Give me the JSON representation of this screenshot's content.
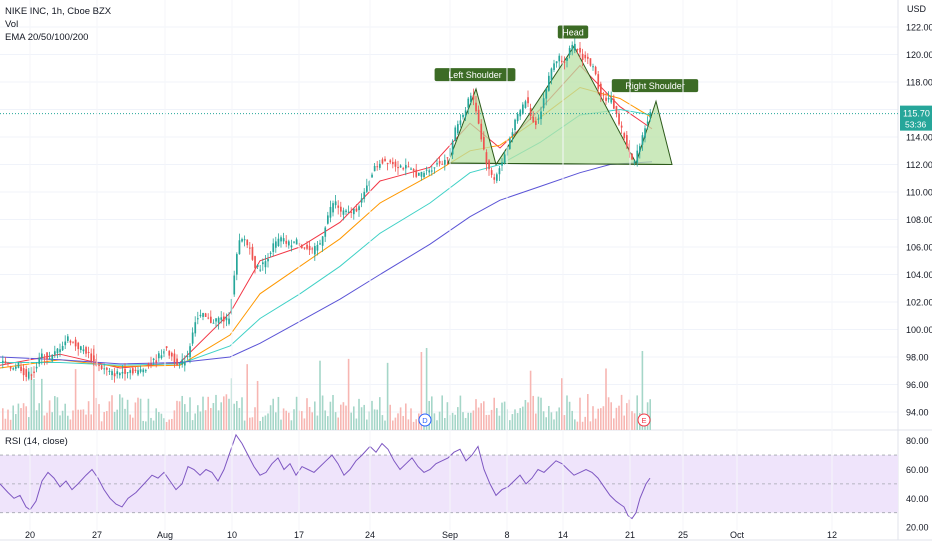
{
  "header": {
    "symbol_line": "NIKE INC, 1h, Cboe BZX",
    "vol_label": "Vol",
    "ema_label": "EMA 20/50/100/200"
  },
  "chart_data": {
    "type": "candlestick",
    "currency": "USD",
    "price_axis": {
      "ticks": [
        94,
        96,
        98,
        100,
        102,
        104,
        106,
        108,
        110,
        112,
        114,
        116,
        118,
        120,
        122
      ],
      "range": [
        93,
        122.5
      ]
    },
    "x_ticks": [
      "20",
      "27",
      "Aug",
      "10",
      "17",
      "24",
      "Sep",
      "8",
      "14",
      "21",
      "25",
      "Oct",
      "12"
    ],
    "last_price": {
      "label": "115.70",
      "value": 115.7,
      "countdown": "53:36",
      "color": "#26a69a"
    },
    "price_path": [
      [
        0,
        97.8
      ],
      [
        12,
        97.2
      ],
      [
        20,
        97.5
      ],
      [
        28,
        96.6
      ],
      [
        36,
        97.0
      ],
      [
        44,
        98.2
      ],
      [
        52,
        97.8
      ],
      [
        60,
        98.6
      ],
      [
        70,
        99.4
      ],
      [
        78,
        98.8
      ],
      [
        88,
        98.4
      ],
      [
        96,
        97.6
      ],
      [
        104,
        97.2
      ],
      [
        112,
        96.8
      ],
      [
        120,
        96.8
      ],
      [
        130,
        97.1
      ],
      [
        140,
        96.9
      ],
      [
        150,
        97.4
      ],
      [
        158,
        97.8
      ],
      [
        166,
        98.6
      ],
      [
        174,
        98.0
      ],
      [
        182,
        97.4
      ],
      [
        190,
        98.2
      ],
      [
        196,
        100.6
      ],
      [
        204,
        101.0
      ],
      [
        212,
        100.6
      ],
      [
        222,
        100.8
      ],
      [
        230,
        100.6
      ],
      [
        236,
        103.8
      ],
      [
        240,
        106.2
      ],
      [
        246,
        106.6
      ],
      [
        252,
        105.8
      ],
      [
        258,
        104.4
      ],
      [
        266,
        104.8
      ],
      [
        274,
        106.0
      ],
      [
        282,
        106.6
      ],
      [
        290,
        106.2
      ],
      [
        298,
        106.4
      ],
      [
        306,
        106.0
      ],
      [
        314,
        105.6
      ],
      [
        322,
        106.3
      ],
      [
        330,
        108.4
      ],
      [
        336,
        109.4
      ],
      [
        342,
        108.6
      ],
      [
        350,
        108.4
      ],
      [
        358,
        108.8
      ],
      [
        366,
        109.8
      ],
      [
        374,
        111.5
      ],
      [
        382,
        112.2
      ],
      [
        390,
        112.3
      ],
      [
        398,
        112.0
      ],
      [
        406,
        111.8
      ],
      [
        414,
        111.5
      ],
      [
        422,
        111.2
      ],
      [
        430,
        111.6
      ],
      [
        438,
        112.0
      ],
      [
        446,
        112.3
      ],
      [
        452,
        113.0
      ],
      [
        458,
        114.8
      ],
      [
        466,
        115.8
      ],
      [
        472,
        117.2
      ],
      [
        478,
        116.0
      ],
      [
        484,
        113.6
      ],
      [
        490,
        111.6
      ],
      [
        496,
        111.0
      ],
      [
        502,
        111.8
      ],
      [
        508,
        113.0
      ],
      [
        514,
        114.5
      ],
      [
        520,
        115.6
      ],
      [
        528,
        116.8
      ],
      [
        536,
        114.8
      ],
      [
        542,
        115.8
      ],
      [
        548,
        117.6
      ],
      [
        554,
        119.2
      ],
      [
        560,
        119.8
      ],
      [
        566,
        119.6
      ],
      [
        572,
        120.4
      ],
      [
        578,
        120.6
      ],
      [
        584,
        119.8
      ],
      [
        590,
        119.6
      ],
      [
        596,
        118.8
      ],
      [
        602,
        117.2
      ],
      [
        608,
        116.8
      ],
      [
        614,
        116.6
      ],
      [
        620,
        115.2
      ],
      [
        626,
        114.0
      ],
      [
        632,
        112.6
      ],
      [
        636,
        112.0
      ],
      [
        640,
        113.2
      ],
      [
        646,
        114.6
      ],
      [
        652,
        115.7
      ]
    ],
    "volume_axis_max": 100,
    "ema_lines": [
      {
        "name": "EMA 20",
        "color": "#f23645",
        "points": [
          [
            0,
            97.4
          ],
          [
            60,
            98.2
          ],
          [
            120,
            97.2
          ],
          [
            180,
            97.6
          ],
          [
            230,
            101.2
          ],
          [
            260,
            105.0
          ],
          [
            300,
            106.0
          ],
          [
            340,
            107.8
          ],
          [
            380,
            110.8
          ],
          [
            430,
            111.8
          ],
          [
            470,
            115.0
          ],
          [
            500,
            113.2
          ],
          [
            540,
            116.0
          ],
          [
            580,
            119.2
          ],
          [
            620,
            116.2
          ],
          [
            652,
            114.6
          ]
        ]
      },
      {
        "name": "EMA 50",
        "color": "#ff9800",
        "points": [
          [
            0,
            97.2
          ],
          [
            60,
            97.8
          ],
          [
            120,
            97.3
          ],
          [
            180,
            97.4
          ],
          [
            230,
            99.6
          ],
          [
            260,
            102.6
          ],
          [
            300,
            104.6
          ],
          [
            340,
            106.6
          ],
          [
            380,
            109.2
          ],
          [
            430,
            111.2
          ],
          [
            470,
            113.0
          ],
          [
            500,
            113.4
          ],
          [
            540,
            115.4
          ],
          [
            580,
            117.6
          ],
          [
            620,
            116.8
          ],
          [
            652,
            115.4
          ]
        ]
      },
      {
        "name": "EMA 100",
        "color": "#3fd1c6",
        "points": [
          [
            0,
            97.6
          ],
          [
            60,
            97.6
          ],
          [
            120,
            97.4
          ],
          [
            180,
            97.5
          ],
          [
            230,
            98.8
          ],
          [
            260,
            100.8
          ],
          [
            300,
            102.6
          ],
          [
            340,
            104.6
          ],
          [
            380,
            107.0
          ],
          [
            430,
            109.2
          ],
          [
            470,
            111.4
          ],
          [
            500,
            112.0
          ],
          [
            540,
            113.6
          ],
          [
            580,
            115.6
          ],
          [
            620,
            116.0
          ],
          [
            652,
            115.6
          ]
        ]
      },
      {
        "name": "EMA 200",
        "color": "#5b54d6",
        "points": [
          [
            0,
            98.0
          ],
          [
            60,
            97.8
          ],
          [
            120,
            97.5
          ],
          [
            180,
            97.6
          ],
          [
            230,
            98.0
          ],
          [
            260,
            99.0
          ],
          [
            300,
            100.6
          ],
          [
            340,
            102.2
          ],
          [
            380,
            104.0
          ],
          [
            430,
            106.2
          ],
          [
            470,
            108.2
          ],
          [
            500,
            109.4
          ],
          [
            540,
            110.4
          ],
          [
            580,
            111.4
          ],
          [
            610,
            112.0
          ],
          [
            652,
            112.2
          ]
        ]
      }
    ],
    "pattern": {
      "fill": "#b9e2a6",
      "stroke": "#2d5a1b",
      "points": [
        [
          448,
          112.1
        ],
        [
          476,
          117.5
        ],
        [
          496,
          112.0
        ],
        [
          574,
          120.6
        ],
        [
          636,
          112.1
        ],
        [
          656,
          116.6
        ],
        [
          672,
          112.0
        ]
      ],
      "neckline": [
        [
          448,
          112.1
        ],
        [
          672,
          112.0
        ]
      ],
      "labels": [
        {
          "text": "Left Shoulder",
          "x": 475,
          "price": 118.5
        },
        {
          "text": "Head",
          "x": 573,
          "price": 121.6
        },
        {
          "text": "Right Shoulder",
          "x": 655,
          "price": 117.7
        }
      ]
    },
    "event_markers": [
      {
        "label": "D",
        "x": 425,
        "color": "#2962ff"
      },
      {
        "label": "E",
        "x": 644,
        "color": "#f23645"
      }
    ],
    "rsi": {
      "label": "RSI (14, close)",
      "ticks": [
        20.0,
        40.0,
        60.0,
        80.0
      ],
      "band": [
        30,
        70
      ],
      "range": [
        18,
        86
      ],
      "fill": "#efe4fb",
      "line_color": "#7e57c2",
      "points": [
        [
          0,
          50
        ],
        [
          8,
          44
        ],
        [
          14,
          40
        ],
        [
          20,
          42
        ],
        [
          26,
          34
        ],
        [
          30,
          32
        ],
        [
          36,
          38
        ],
        [
          42,
          52
        ],
        [
          48,
          58
        ],
        [
          54,
          54
        ],
        [
          60,
          48
        ],
        [
          66,
          52
        ],
        [
          72,
          46
        ],
        [
          78,
          50
        ],
        [
          86,
          56
        ],
        [
          92,
          60
        ],
        [
          98,
          54
        ],
        [
          104,
          46
        ],
        [
          110,
          40
        ],
        [
          116,
          36
        ],
        [
          122,
          34
        ],
        [
          128,
          40
        ],
        [
          136,
          44
        ],
        [
          144,
          50
        ],
        [
          152,
          56
        ],
        [
          158,
          54
        ],
        [
          164,
          58
        ],
        [
          170,
          52
        ],
        [
          176,
          46
        ],
        [
          182,
          50
        ],
        [
          188,
          62
        ],
        [
          194,
          60
        ],
        [
          200,
          56
        ],
        [
          206,
          60
        ],
        [
          212,
          58
        ],
        [
          218,
          52
        ],
        [
          224,
          60
        ],
        [
          230,
          72
        ],
        [
          236,
          84
        ],
        [
          242,
          78
        ],
        [
          248,
          70
        ],
        [
          254,
          62
        ],
        [
          260,
          56
        ],
        [
          266,
          58
        ],
        [
          272,
          64
        ],
        [
          278,
          68
        ],
        [
          284,
          60
        ],
        [
          290,
          64
        ],
        [
          296,
          56
        ],
        [
          302,
          62
        ],
        [
          308,
          60
        ],
        [
          314,
          58
        ],
        [
          320,
          62
        ],
        [
          326,
          66
        ],
        [
          332,
          70
        ],
        [
          338,
          64
        ],
        [
          344,
          56
        ],
        [
          350,
          60
        ],
        [
          356,
          66
        ],
        [
          362,
          70
        ],
        [
          370,
          76
        ],
        [
          376,
          72
        ],
        [
          382,
          78
        ],
        [
          388,
          74
        ],
        [
          394,
          66
        ],
        [
          400,
          60
        ],
        [
          406,
          64
        ],
        [
          412,
          68
        ],
        [
          418,
          62
        ],
        [
          424,
          58
        ],
        [
          430,
          60
        ],
        [
          436,
          64
        ],
        [
          442,
          66
        ],
        [
          448,
          68
        ],
        [
          454,
          72
        ],
        [
          460,
          74
        ],
        [
          466,
          66
        ],
        [
          472,
          70
        ],
        [
          478,
          76
        ],
        [
          484,
          60
        ],
        [
          490,
          50
        ],
        [
          496,
          42
        ],
        [
          502,
          46
        ],
        [
          508,
          48
        ],
        [
          514,
          52
        ],
        [
          520,
          56
        ],
        [
          526,
          50
        ],
        [
          532,
          54
        ],
        [
          538,
          60
        ],
        [
          544,
          58
        ],
        [
          550,
          62
        ],
        [
          556,
          66
        ],
        [
          562,
          64
        ],
        [
          568,
          60
        ],
        [
          574,
          56
        ],
        [
          580,
          58
        ],
        [
          586,
          60
        ],
        [
          592,
          58
        ],
        [
          598,
          54
        ],
        [
          604,
          48
        ],
        [
          610,
          42
        ],
        [
          616,
          38
        ],
        [
          620,
          36
        ],
        [
          624,
          34
        ],
        [
          628,
          28
        ],
        [
          632,
          26
        ],
        [
          636,
          30
        ],
        [
          640,
          40
        ],
        [
          646,
          50
        ],
        [
          650,
          54
        ]
      ]
    }
  }
}
